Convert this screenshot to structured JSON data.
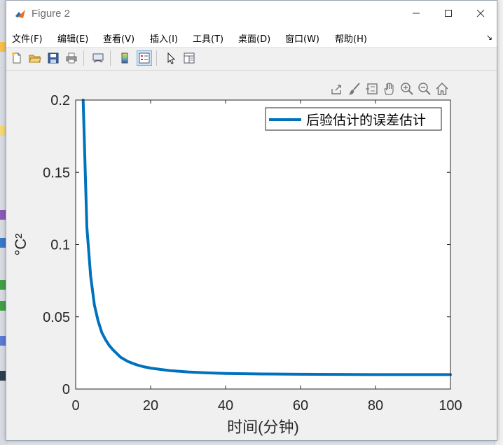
{
  "window": {
    "title": "Figure 2",
    "buttons": [
      "minimize",
      "maximize",
      "close"
    ]
  },
  "menubar": {
    "items": [
      "文件(F)",
      "编辑(E)",
      "查看(V)",
      "插入(I)",
      "工具(T)",
      "桌面(D)",
      "窗口(W)",
      "帮助(H)"
    ],
    "overflow_glyph": "↘"
  },
  "toolbar": {
    "icons": [
      "new-figure-icon",
      "open-file-icon",
      "save-icon",
      "print-icon",
      "link-plot-icon",
      "colorbar-icon",
      "legend-icon",
      "edit-plot-icon",
      "property-inspector-icon"
    ],
    "active": "legend-icon"
  },
  "axes_toolbar": {
    "icons": [
      "export-icon",
      "brush-icon",
      "data-tips-icon",
      "pan-icon",
      "zoom-in-icon",
      "zoom-out-icon",
      "home-icon"
    ]
  },
  "colors": {
    "line": "#0072BD",
    "axes_bg": "#ffffff",
    "figure_bg": "#f0f0f0"
  },
  "chart_data": {
    "type": "line",
    "title": "",
    "xlabel": "时间(分钟)",
    "ylabel": "°C²",
    "xlim": [
      0,
      100
    ],
    "ylim": [
      0,
      0.2
    ],
    "xticks": [
      "0",
      "20",
      "40",
      "60",
      "80",
      "100"
    ],
    "yticks": [
      "0",
      "0.05",
      "0.1",
      "0.15",
      "0.2"
    ],
    "grid": false,
    "legend": {
      "placement": "top-right",
      "entries": [
        "后验估计的误差估计"
      ]
    },
    "series": [
      {
        "name": "后验估计的误差估计",
        "x": [
          2,
          3,
          4,
          5,
          6,
          7,
          8,
          9,
          10,
          12,
          14,
          16,
          18,
          20,
          25,
          30,
          35,
          40,
          50,
          60,
          70,
          80,
          90,
          100
        ],
        "y": [
          0.2,
          0.112,
          0.078,
          0.058,
          0.047,
          0.039,
          0.034,
          0.03,
          0.027,
          0.022,
          0.019,
          0.017,
          0.0155,
          0.0145,
          0.0128,
          0.0118,
          0.0112,
          0.0108,
          0.0104,
          0.0102,
          0.0101,
          0.01,
          0.01,
          0.01
        ]
      }
    ]
  }
}
